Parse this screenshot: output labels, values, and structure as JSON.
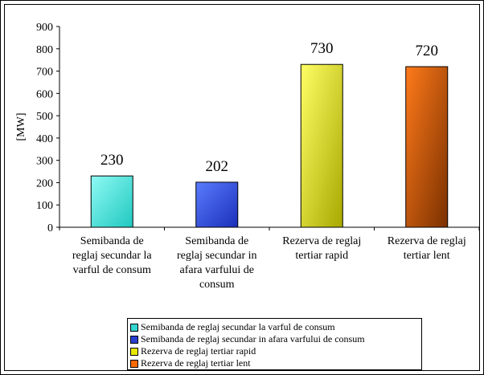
{
  "chart_data": {
    "type": "bar",
    "categories": [
      "Semibanda de reglaj secundar la varful de consum",
      "Semibanda de reglaj secundar in afara varfului de consum",
      "Rezerva de reglaj tertiar rapid",
      "Rezerva de reglaj tertiar lent"
    ],
    "category_lines": [
      [
        "Semibanda de",
        "reglaj secundar la",
        "varful de consum"
      ],
      [
        "Semibanda de",
        "reglaj secundar in",
        "afara varfului de",
        "consum"
      ],
      [
        "Rezerva de reglaj",
        "tertiar rapid"
      ],
      [
        "Rezerva de reglaj",
        "tertiar lent"
      ]
    ],
    "values": [
      230,
      202,
      730,
      720
    ],
    "data_labels": [
      "230",
      "202",
      "730",
      "720"
    ],
    "ylabel": "[MW]",
    "xlabel": "",
    "ylim": [
      0,
      900
    ],
    "yticks": [
      0,
      100,
      200,
      300,
      400,
      500,
      600,
      700,
      800,
      900
    ],
    "grid": false,
    "legend_position": "bottom",
    "legend": [
      "Semibanda de reglaj secundar la varful de consum",
      "Semibanda de reglaj secundar in afara varfului de consum",
      "Rezerva de reglaj tertiar rapid",
      "Rezerva de reglaj tertiar lent"
    ],
    "colors": [
      [
        "#8ffaf4",
        "#1fc8c0"
      ],
      [
        "#5a7cff",
        "#1a2fb8"
      ],
      [
        "#ffff66",
        "#a8a800"
      ],
      [
        "#ff7a1a",
        "#7a3000"
      ]
    ],
    "legend_colors": [
      "#33d6cf",
      "#2a3fd0",
      "#e8e800",
      "#ff6a00"
    ]
  }
}
